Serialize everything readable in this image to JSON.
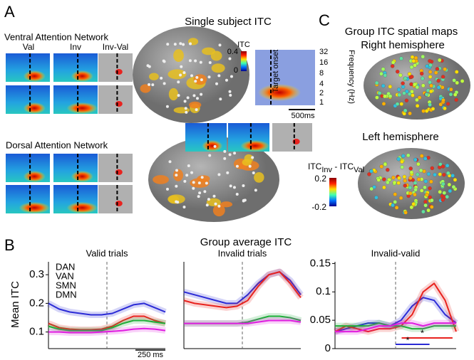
{
  "panel_a": {
    "label": "A",
    "title": "Single subject ITC",
    "van_title": "Ventral Attention Network",
    "col_labels": [
      "Val",
      "Inv",
      "Inv-Val"
    ],
    "dan_title": "Dorsal Attention Network",
    "colorbar": {
      "title": "ITC",
      "ticks": [
        0.4,
        0
      ]
    },
    "freq_axis": {
      "label": "Frequency (Hz)",
      "ticks": [
        32,
        16,
        8,
        4,
        2,
        1
      ]
    },
    "onset_label": "Target onset",
    "scale_label": "500ms"
  },
  "panel_c": {
    "label": "C",
    "title": "Group ITC spatial maps",
    "right_label": "Right hemisphere",
    "left_label": "Left hemisphere",
    "colorbar_label": {
      "main1": "ITC",
      "sub1": "Inv",
      "main2": " - ITC",
      "sub2": "Val"
    },
    "colorbar_ticks": [
      0.2,
      -0.2
    ]
  },
  "panel_b": {
    "label": "B",
    "title": "Group average ITC",
    "y_label": "Mean ITC",
    "scale_label": "250 ms"
  },
  "chart_data": [
    {
      "type": "line",
      "title": "Valid trials",
      "ylim": [
        0.042,
        0.345
      ],
      "yticks": [
        0.1,
        0.2,
        0.3
      ],
      "legend": true,
      "series": [
        {
          "name": "DAN",
          "color": "#2b2bd6",
          "values": [
            0.2,
            0.18,
            0.17,
            0.165,
            0.16,
            0.16,
            0.165,
            0.18,
            0.195,
            0.2,
            0.185,
            0.17
          ]
        },
        {
          "name": "VAN",
          "color": "#e8231f",
          "values": [
            0.13,
            0.115,
            0.11,
            0.108,
            0.108,
            0.11,
            0.12,
            0.14,
            0.155,
            0.155,
            0.14,
            0.13
          ]
        },
        {
          "name": "SMN",
          "color": "#1fae3a",
          "values": [
            0.12,
            0.11,
            0.105,
            0.105,
            0.105,
            0.105,
            0.115,
            0.13,
            0.14,
            0.14,
            0.135,
            0.13
          ]
        },
        {
          "name": "DMN",
          "color": "#e01ee0",
          "values": [
            0.1,
            0.1,
            0.098,
            0.098,
            0.098,
            0.1,
            0.102,
            0.105,
            0.11,
            0.112,
            0.11,
            0.105
          ]
        }
      ]
    },
    {
      "type": "line",
      "title": "Invalid trials",
      "ylim": [
        0.042,
        0.345
      ],
      "legend": false,
      "series": [
        {
          "name": "DAN",
          "color": "#2b2bd6",
          "values": [
            0.24,
            0.23,
            0.22,
            0.21,
            0.2,
            0.2,
            0.23,
            0.27,
            0.3,
            0.31,
            0.28,
            0.23
          ]
        },
        {
          "name": "VAN",
          "color": "#e8231f",
          "values": [
            0.21,
            0.2,
            0.195,
            0.19,
            0.185,
            0.19,
            0.21,
            0.26,
            0.3,
            0.31,
            0.27,
            0.22
          ]
        },
        {
          "name": "SMN",
          "color": "#1fae3a",
          "values": [
            0.13,
            0.13,
            0.13,
            0.13,
            0.13,
            0.13,
            0.135,
            0.145,
            0.155,
            0.155,
            0.15,
            0.14
          ]
        },
        {
          "name": "DMN",
          "color": "#e01ee0",
          "values": [
            0.13,
            0.13,
            0.13,
            0.13,
            0.13,
            0.13,
            0.13,
            0.135,
            0.14,
            0.14,
            0.14,
            0.135
          ]
        }
      ]
    },
    {
      "type": "line",
      "title": "Invalid-valid",
      "ylim": [
        0,
        0.153
      ],
      "yticks": [
        0,
        0.05,
        0.1,
        0.15
      ],
      "legend": false,
      "annotations": [
        "*",
        "*"
      ],
      "series": [
        {
          "name": "DAN",
          "color": "#2b2bd6",
          "values": [
            0.03,
            0.035,
            0.04,
            0.045,
            0.045,
            0.04,
            0.05,
            0.075,
            0.09,
            0.085,
            0.06,
            0.045
          ]
        },
        {
          "name": "VAN",
          "color": "#e8231f",
          "values": [
            0.03,
            0.04,
            0.035,
            0.03,
            0.035,
            0.035,
            0.04,
            0.06,
            0.1,
            0.115,
            0.085,
            0.03
          ]
        },
        {
          "name": "SMN",
          "color": "#1fae3a",
          "values": [
            0.04,
            0.04,
            0.04,
            0.04,
            0.045,
            0.04,
            0.04,
            0.035,
            0.035,
            0.04,
            0.04,
            0.04
          ]
        },
        {
          "name": "DMN",
          "color": "#e01ee0",
          "values": [
            0.03,
            0.03,
            0.03,
            0.035,
            0.04,
            0.04,
            0.045,
            0.045,
            0.04,
            0.045,
            0.045,
            0.045
          ]
        }
      ]
    }
  ]
}
